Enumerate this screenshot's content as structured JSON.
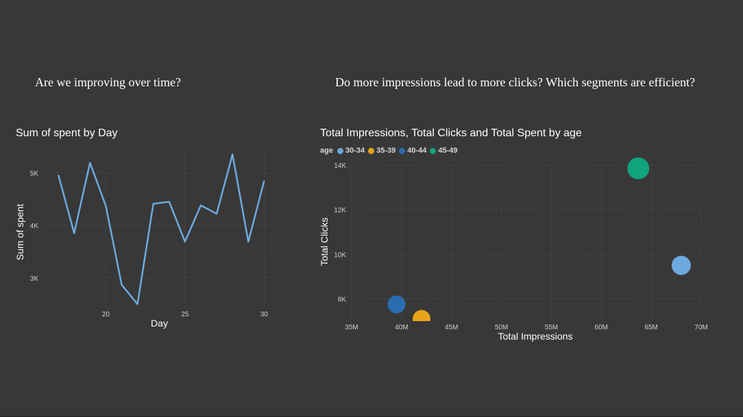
{
  "headings": {
    "left": "Are we improving over time?",
    "right": "Do more impressions lead to more clicks? Which segments are efficient?"
  },
  "line_chart": {
    "title": "Sum of spent by Day"
  },
  "bubble_chart": {
    "title": "Total Impressions, Total Clicks and Total Spent by age",
    "legend_title": "age"
  },
  "chart_data": [
    {
      "type": "line",
      "title": "Sum of spent by Day",
      "xlabel": "Day",
      "ylabel": "Sum of spent",
      "x_ticks": [
        20,
        25,
        30
      ],
      "y_ticks": [
        3000,
        4000,
        5000
      ],
      "y_tick_labels": [
        "3K",
        "4K",
        "5K"
      ],
      "xlim": [
        16,
        30.5
      ],
      "ylim": [
        2450,
        5500
      ],
      "grid": true,
      "color": "#6ea9de",
      "x": [
        17,
        18,
        19,
        20,
        21,
        22,
        23,
        24,
        25,
        26,
        27,
        28,
        29,
        30
      ],
      "values": [
        4960,
        3850,
        5190,
        4370,
        2870,
        2500,
        4410,
        4450,
        3690,
        4380,
        4220,
        5350,
        3690,
        4850
      ]
    },
    {
      "type": "scatter",
      "title": "Total Impressions, Total Clicks and Total Spent by age",
      "xlabel": "Total Impressions",
      "ylabel": "Total Clicks",
      "x_ticks": [
        35,
        40,
        45,
        50,
        55,
        60,
        65,
        70
      ],
      "x_tick_labels": [
        "35M",
        "40M",
        "45M",
        "50M",
        "55M",
        "60M",
        "65M",
        "70M"
      ],
      "y_ticks": [
        8000,
        10000,
        12000,
        14000
      ],
      "y_tick_labels": [
        "8K",
        "10K",
        "12K",
        "14K"
      ],
      "xlim": [
        35,
        70
      ],
      "ylim": [
        7000,
        14000
      ],
      "grid": true,
      "legend": "top-left",
      "series": [
        {
          "name": "30-34",
          "color": "#6ea9de",
          "x": 68.0,
          "y": 9500,
          "size": 14
        },
        {
          "name": "35-39",
          "color": "#e8a51b",
          "x": 42.0,
          "y": 7100,
          "size": 13
        },
        {
          "name": "40-44",
          "color": "#2a6cb0",
          "x": 39.5,
          "y": 7750,
          "size": 13
        },
        {
          "name": "45-49",
          "color": "#12a37f",
          "x": 63.7,
          "y": 13850,
          "size": 16
        }
      ]
    }
  ]
}
